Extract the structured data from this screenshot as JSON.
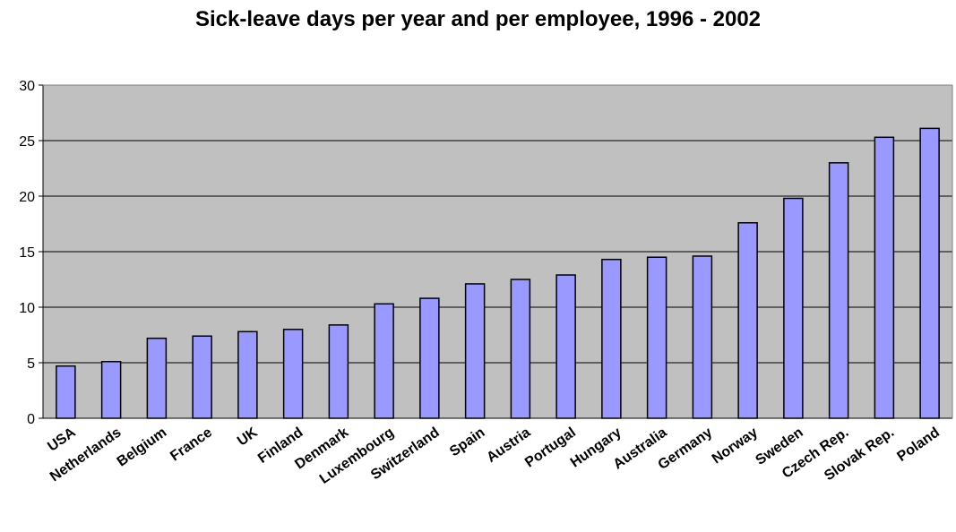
{
  "chart_data": {
    "type": "bar",
    "title": "Sick-leave days per year and per employee, 1996 - 2002",
    "xlabel": "",
    "ylabel": "",
    "ylim": [
      0,
      30
    ],
    "yticks": [
      0,
      5,
      10,
      15,
      20,
      25,
      30
    ],
    "grid": true,
    "categories": [
      "USA",
      "Netherlands",
      "Belgium",
      "France",
      "UK",
      "Finland",
      "Denmark",
      "Luxembourg",
      "Switzerland",
      "Spain",
      "Austria",
      "Portugal",
      "Hungary",
      "Australia",
      "Germany",
      "Norway",
      "Sweden",
      "Czech Rep.",
      "Slovak Rep.",
      "Poland"
    ],
    "values": [
      4.7,
      5.1,
      7.2,
      7.4,
      7.8,
      8.0,
      8.4,
      10.3,
      10.8,
      12.1,
      12.5,
      12.9,
      14.3,
      14.5,
      14.6,
      17.6,
      19.8,
      23.0,
      25.3,
      26.1
    ],
    "colors": {
      "bar": "#9999ff",
      "plot_background": "#c0c0c0",
      "gridline": "#000000"
    }
  }
}
